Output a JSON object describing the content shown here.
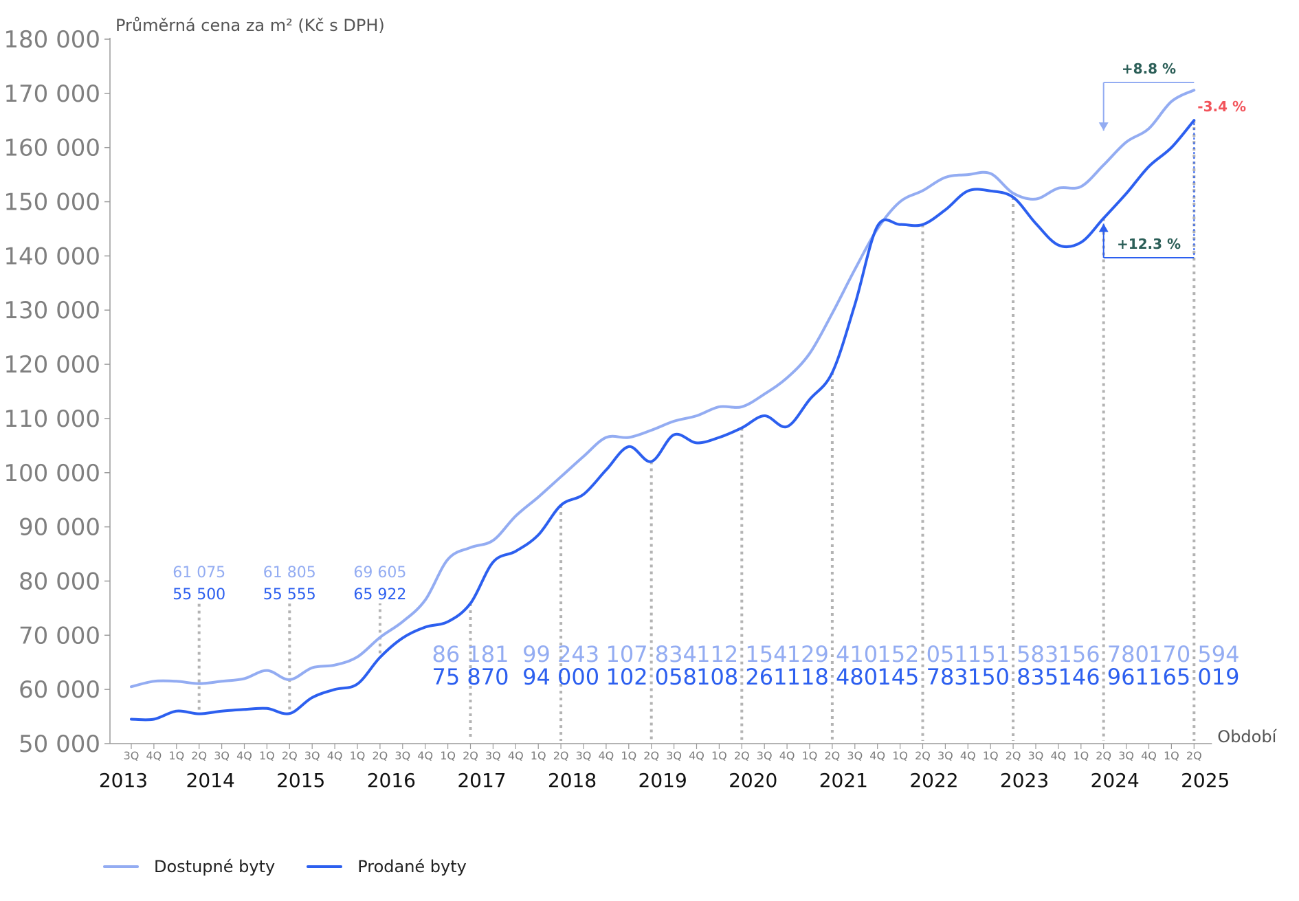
{
  "chart_data": {
    "type": "line",
    "ylabel": "Průměrná cena za m² (Kč s DPH)",
    "xlabel": "Období",
    "ylim": [
      50000,
      180000
    ],
    "yticks": [
      50000,
      60000,
      70000,
      80000,
      90000,
      100000,
      110000,
      120000,
      130000,
      140000,
      150000,
      160000,
      170000,
      180000
    ],
    "ytick_labels": [
      "50 000",
      "60 000",
      "70 000",
      "80 000",
      "90 000",
      "100 000",
      "110 000",
      "120 000",
      "130 000",
      "140 000",
      "150 000",
      "160 000",
      "170 000",
      "180 000"
    ],
    "x": [
      "3Q",
      "4Q",
      "1Q",
      "2Q",
      "3Q",
      "4Q",
      "1Q",
      "2Q",
      "3Q",
      "4Q",
      "1Q",
      "2Q",
      "3Q",
      "4Q",
      "1Q",
      "2Q",
      "3Q",
      "4Q",
      "1Q",
      "2Q",
      "3Q",
      "4Q",
      "1Q",
      "2Q",
      "3Q",
      "4Q",
      "1Q",
      "2Q",
      "3Q",
      "4Q",
      "1Q",
      "2Q",
      "3Q",
      "4Q",
      "1Q",
      "2Q",
      "3Q",
      "4Q",
      "1Q",
      "2Q",
      "3Q",
      "4Q",
      "1Q",
      "2Q",
      "3Q",
      "4Q",
      "1Q",
      "2Q"
    ],
    "years": [
      "2013",
      "2014",
      "2015",
      "2016",
      "2017",
      "2018",
      "2019",
      "2020",
      "2021",
      "2022",
      "2023",
      "2024",
      "2025"
    ],
    "series": [
      {
        "name": "Dostupné byty",
        "color": "#93acf2",
        "values": [
          60500,
          61500,
          61500,
          61075,
          61500,
          62000,
          63500,
          61805,
          64000,
          64500,
          66000,
          69605,
          72500,
          76500,
          84000,
          86181,
          87500,
          92000,
          95500,
          99243,
          103000,
          106500,
          106500,
          107834,
          109500,
          110500,
          112154,
          112154,
          114500,
          117500,
          122000,
          129410,
          137500,
          145000,
          150000,
          152051,
          154500,
          155000,
          155200,
          151583,
          150500,
          152500,
          152800,
          156780,
          161000,
          163500,
          168500,
          170594
        ]
      },
      {
        "name": "Prodané byty",
        "color": "#2c5fef",
        "values": [
          54500,
          54500,
          56000,
          55500,
          56000,
          56300,
          56500,
          55555,
          58500,
          60000,
          61000,
          65922,
          69500,
          71500,
          72500,
          75870,
          83500,
          85500,
          88500,
          94000,
          96000,
          100500,
          104800,
          102058,
          107000,
          105500,
          106500,
          108261,
          110500,
          108500,
          113500,
          118480,
          131000,
          145500,
          145800,
          145783,
          148500,
          152000,
          152000,
          150835,
          146000,
          142000,
          142500,
          146961,
          151500,
          156500,
          160000,
          165019
        ]
      }
    ],
    "annotations": {
      "early_labels": [
        {
          "index": 3,
          "available": "61 075",
          "sold": "55 500"
        },
        {
          "index": 7,
          "available": "61 805",
          "sold": "55 555"
        },
        {
          "index": 11,
          "available": "69 605",
          "sold": "65 922"
        }
      ],
      "late_labels": [
        {
          "index": 15,
          "available": "86 181",
          "sold": "75 870"
        },
        {
          "index": 19,
          "available": "99 243",
          "sold": "94 000"
        },
        {
          "index": 23,
          "available": "107 834",
          "sold": "102 058"
        },
        {
          "index": 27,
          "available": "112 154",
          "sold": "108 261"
        },
        {
          "index": 31,
          "available": "129 410",
          "sold": "118 480"
        },
        {
          "index": 35,
          "available": "152 051",
          "sold": "145 783"
        },
        {
          "index": 39,
          "available": "151 583",
          "sold": "150 835"
        },
        {
          "index": 43,
          "available": "156 780",
          "sold": "146 961"
        },
        {
          "index": 47,
          "available": "170 594",
          "sold": "165 019"
        }
      ],
      "change_available": "+8.8 %",
      "change_sold": "+12.3 %",
      "gap_latest": "-3.4 %"
    }
  },
  "legend": {
    "available": "Dostupné byty",
    "sold": "Prodané byty"
  }
}
